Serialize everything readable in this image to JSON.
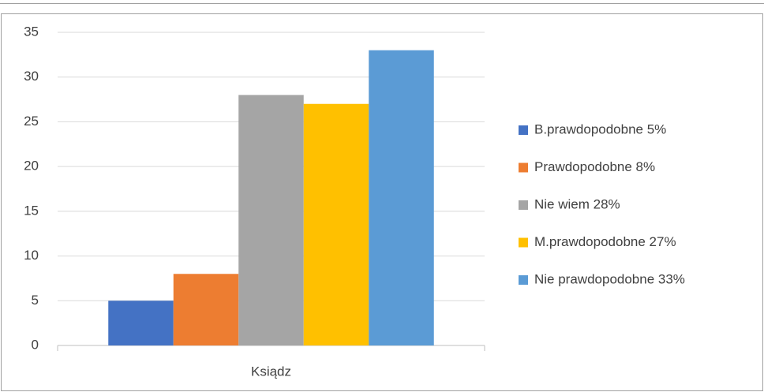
{
  "chart_data": {
    "type": "bar",
    "categories": [
      "Ksiądz"
    ],
    "series": [
      {
        "name": "B.prawdopodobne 5%",
        "color": "#4472c4",
        "values": [
          5
        ]
      },
      {
        "name": "Prawdopodobne 8%",
        "color": "#ed7d31",
        "values": [
          8
        ]
      },
      {
        "name": "Nie wiem 28%",
        "color": "#a5a5a5",
        "values": [
          28
        ]
      },
      {
        "name": "M.prawdopodobne 27%",
        "color": "#ffc000",
        "values": [
          27
        ]
      },
      {
        "name": "Nie prawdopodobne 33%",
        "color": "#5b9bd5",
        "values": [
          33
        ]
      }
    ],
    "ylim": [
      0,
      35
    ],
    "yticks": [
      0,
      5,
      10,
      15,
      20,
      25,
      30,
      35
    ],
    "grid": true,
    "legend": "right"
  }
}
